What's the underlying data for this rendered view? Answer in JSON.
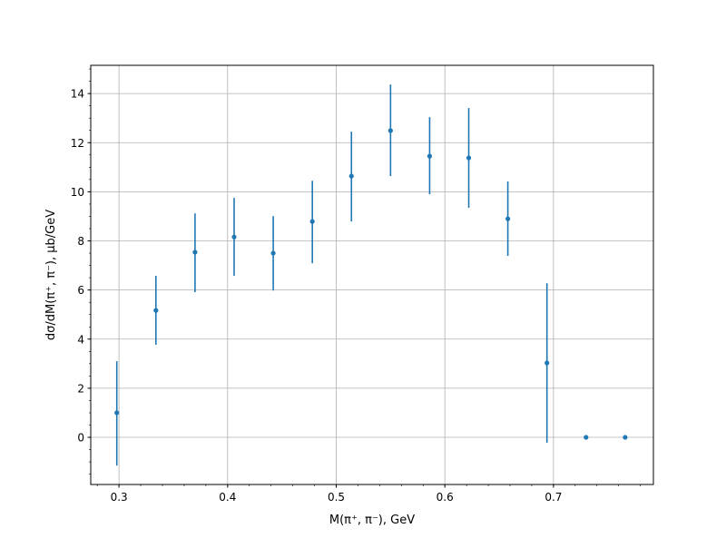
{
  "chart_data": {
    "type": "scatter",
    "title": "",
    "xlabel": "M(π⁺, π⁻), GeV",
    "ylabel": "dσ/dM(π⁺, π⁻), μb/GeV",
    "xlim": [
      0.274,
      0.792
    ],
    "ylim": [
      -1.92,
      15.15
    ],
    "x_ticks": [
      0.3,
      0.4,
      0.5,
      0.6,
      0.7
    ],
    "x_tick_labels": [
      "0.3",
      "0.4",
      "0.5",
      "0.6",
      "0.7"
    ],
    "y_ticks": [
      0,
      2,
      4,
      6,
      8,
      10,
      12,
      14
    ],
    "y_tick_labels": [
      "0",
      "2",
      "4",
      "6",
      "8",
      "10",
      "12",
      "14"
    ],
    "x_minor_step": 0.02,
    "y_minor_step": 0.5,
    "grid": true,
    "color": "#1f77b4",
    "series": [
      {
        "x": [
          0.298,
          0.334,
          0.37,
          0.406,
          0.442,
          0.478,
          0.514,
          0.55,
          0.586,
          0.622,
          0.658,
          0.694,
          0.73,
          0.766
        ],
        "y": [
          1.0,
          5.17,
          7.54,
          8.16,
          7.5,
          8.79,
          10.64,
          12.49,
          11.45,
          11.38,
          8.9,
          3.03,
          0.0,
          0.0
        ],
        "yerr_low": [
          -1.15,
          3.77,
          5.91,
          6.58,
          5.98,
          7.09,
          8.79,
          10.64,
          9.9,
          9.35,
          7.39,
          -0.22,
          0.0,
          0.0
        ],
        "yerr_high": [
          3.1,
          6.58,
          9.12,
          9.75,
          9.01,
          10.45,
          12.45,
          14.37,
          13.04,
          13.41,
          10.42,
          6.28,
          0.0,
          0.0
        ]
      }
    ]
  }
}
